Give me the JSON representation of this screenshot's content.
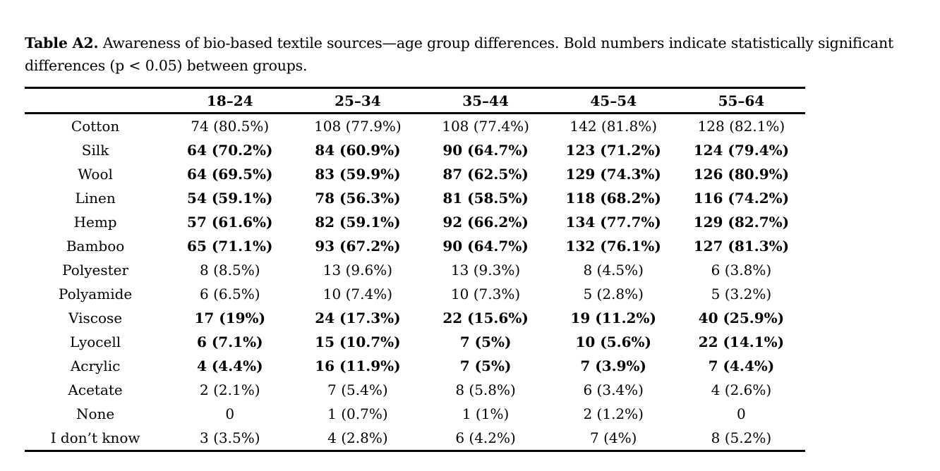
{
  "caption": {
    "label": "Table A2.",
    "text": " Awareness of bio-based textile sources—age group differences. Bold numbers indicate statistically significant differences (p < 0.05) between groups."
  },
  "table": {
    "corner_label": "",
    "age_groups": [
      "18–24",
      "25–34",
      "35–44",
      "45–54",
      "55–64"
    ],
    "rows": [
      {
        "label": "Cotton",
        "bold": false,
        "values": [
          "74 (80.5%)",
          "108 (77.9%)",
          "108 (77.4%)",
          "142 (81.8%)",
          "128 (82.1%)"
        ]
      },
      {
        "label": "Silk",
        "bold": true,
        "values": [
          "64 (70.2%)",
          "84 (60.9%)",
          "90 (64.7%)",
          "123 (71.2%)",
          "124 (79.4%)"
        ]
      },
      {
        "label": "Wool",
        "bold": true,
        "values": [
          "64 (69.5%)",
          "83 (59.9%)",
          "87 (62.5%)",
          "129 (74.3%)",
          "126 (80.9%)"
        ]
      },
      {
        "label": "Linen",
        "bold": true,
        "values": [
          "54 (59.1%)",
          "78 (56.3%)",
          "81 (58.5%)",
          "118 (68.2%)",
          "116 (74.2%)"
        ]
      },
      {
        "label": "Hemp",
        "bold": true,
        "values": [
          "57 (61.6%)",
          "82 (59.1%)",
          "92 (66.2%)",
          "134 (77.7%)",
          "129 (82.7%)"
        ]
      },
      {
        "label": "Bamboo",
        "bold": true,
        "values": [
          "65 (71.1%)",
          "93 (67.2%)",
          "90 (64.7%)",
          "132 (76.1%)",
          "127 (81.3%)"
        ]
      },
      {
        "label": "Polyester",
        "bold": false,
        "values": [
          "8 (8.5%)",
          "13 (9.6%)",
          "13 (9.3%)",
          "8 (4.5%)",
          "6 (3.8%)"
        ]
      },
      {
        "label": "Polyamide",
        "bold": false,
        "values": [
          "6 (6.5%)",
          "10 (7.4%)",
          "10 (7.3%)",
          "5 (2.8%)",
          "5 (3.2%)"
        ]
      },
      {
        "label": "Viscose",
        "bold": true,
        "values": [
          "17 (19%)",
          "24 (17.3%)",
          "22 (15.6%)",
          "19 (11.2%)",
          "40 (25.9%)"
        ]
      },
      {
        "label": "Lyocell",
        "bold": true,
        "values": [
          "6 (7.1%)",
          "15 (10.7%)",
          "7 (5%)",
          "10 (5.6%)",
          "22 (14.1%)"
        ]
      },
      {
        "label": "Acrylic",
        "bold": true,
        "values": [
          "4 (4.4%)",
          "16 (11.9%)",
          "7 (5%)",
          "7 (3.9%)",
          "7 (4.4%)"
        ]
      },
      {
        "label": "Acetate",
        "bold": false,
        "values": [
          "2 (2.1%)",
          "7 (5.4%)",
          "8 (5.8%)",
          "6 (3.4%)",
          "4 (2.6%)"
        ]
      },
      {
        "label": "None",
        "bold": false,
        "values": [
          "0",
          "1 (0.7%)",
          "1 (1%)",
          "2 (1.2%)",
          "0"
        ]
      },
      {
        "label": "I don’t know",
        "bold": false,
        "values": [
          "3 (3.5%)",
          "4 (2.8%)",
          "6 (4.2%)",
          "7 (4%)",
          "8 (5.2%)"
        ]
      }
    ]
  },
  "colors": {
    "text": "#000000",
    "background": "#ffffff",
    "rule": "#000000"
  }
}
